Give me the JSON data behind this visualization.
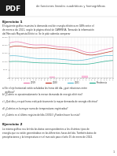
{
  "background_color": "#ffffff",
  "pdf_box_color": "#1a1a1a",
  "header_text": "de funciones lineales cuadráticas y homográficas",
  "ejercicio1_title": "Ejercicio 1",
  "ejercicio1_text": "El siguiente gráfico muestra la demanda real de energía eléctrica en GWh entre el\nde enero a dic 2021, según la página oficial de CAMMESA. Tomando la información\ndel Mercado Mayorista Eléctrico. Se le pide además comparar",
  "line1_color": "#e87dac",
  "line2_color": "#c0392b",
  "line3_color": "#5dbcd2",
  "line4_color": "#27ae8f",
  "legend_labels": [
    "2019",
    "2020",
    "2021",
    "Tendencia"
  ],
  "questions": [
    "a) En el eje horizontal están señaladas las horas del día, ¿qué relaciones entre\n    gráficos?",
    "b) ¿Cuánto es aproximadamente la menor demanda de energía eléctrica?",
    "c) ¿Qué día y en qué horas está prácticamente la mayor demanda de energía eléctrica?",
    "d) ¿Cuántos es la mayor suma de temperaturas registradas?",
    "e) ¿Cuánto es el último registro del día 13/01/3 ¿Pueden hacer la resta?"
  ],
  "ejercicio2_title": "Ejercicio 2",
  "ejercicio2_text": "La misma gráfica nos brinda los datos correspondientes a los distintos tipos de\nenergía que es están generándose en los diferentes horas del día. También datos de\nprecipitaciones y la temperatura en el mercado para el año 15 de enero de 2022."
}
